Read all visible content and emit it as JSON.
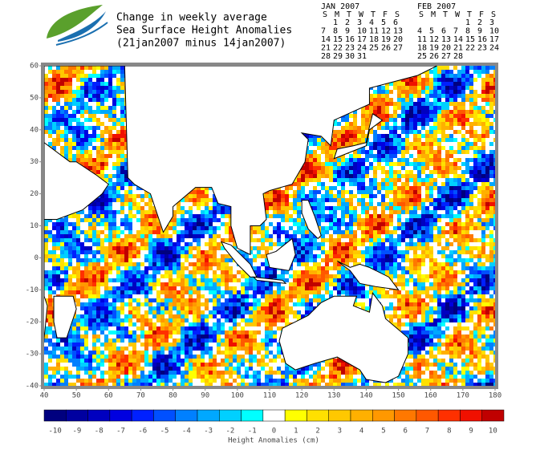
{
  "header": {
    "title": [
      "Change in weekly average",
      "Sea Surface Height Anomalies",
      "(21jan2007 minus 14jan2007)"
    ]
  },
  "calendar": [
    {
      "title": "JAN 2007",
      "weekdays": [
        "S",
        "M",
        "T",
        "W",
        "T",
        "F",
        "S"
      ],
      "highlight_weeks": [
        2,
        3
      ],
      "weeks": [
        [
          null,
          1,
          2,
          3,
          4,
          5,
          6
        ],
        [
          7,
          8,
          9,
          10,
          11,
          12,
          13
        ],
        [
          14,
          15,
          16,
          17,
          18,
          19,
          20
        ],
        [
          21,
          22,
          23,
          24,
          25,
          26,
          27
        ],
        [
          28,
          29,
          30,
          31
        ]
      ]
    },
    {
      "title": "FEB 2007",
      "weekdays": [
        "S",
        "M",
        "T",
        "W",
        "T",
        "F",
        "S"
      ],
      "highlight_weeks": [],
      "weeks": [
        [
          null,
          null,
          null,
          null,
          1,
          2,
          3
        ],
        [
          4,
          5,
          6,
          7,
          8,
          9,
          10
        ],
        [
          11,
          12,
          13,
          14,
          15,
          16,
          17
        ],
        [
          18,
          19,
          20,
          21,
          22,
          23,
          24
        ],
        [
          25,
          26,
          27,
          28
        ]
      ]
    }
  ],
  "map": {
    "xlim": [
      40,
      180
    ],
    "ylim": [
      -40,
      60
    ],
    "xticks": [
      40,
      50,
      60,
      70,
      80,
      90,
      100,
      110,
      120,
      130,
      140,
      150,
      160,
      170,
      180
    ],
    "yticks": [
      -40,
      -30,
      -20,
      -10,
      0,
      10,
      20,
      30,
      40,
      50,
      60
    ]
  },
  "colorbar": {
    "label": "Height Anomalies (cm)",
    "ticks": [
      -10,
      -9,
      -8,
      -7,
      -6,
      -5,
      -4,
      -3,
      -2,
      -1,
      0,
      1,
      2,
      3,
      4,
      5,
      6,
      7,
      8,
      9,
      10
    ],
    "colors": [
      "#00007f",
      "#0000a0",
      "#0000c0",
      "#0000e0",
      "#0020ff",
      "#0050ff",
      "#0080ff",
      "#00a8ff",
      "#00d0ff",
      "#00ffff",
      "#ffffff",
      "#ffff00",
      "#ffe000",
      "#ffc800",
      "#ffb000",
      "#ff9800",
      "#ff7800",
      "#ff5800",
      "#ff3000",
      "#f01000",
      "#c00000"
    ]
  }
}
